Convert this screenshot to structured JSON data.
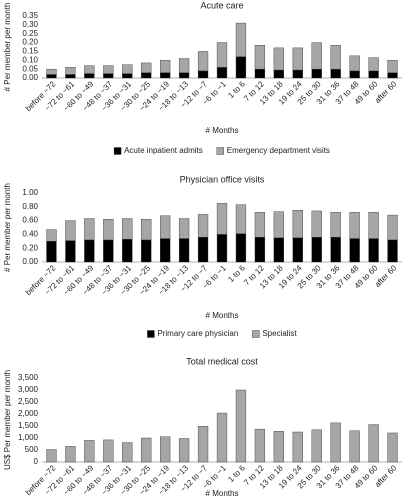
{
  "chart_data": [
    {
      "type": "bar",
      "title": "Acute care",
      "y_label": "# Per member per month",
      "x_label": "# Months",
      "categories": [
        "before −72",
        "−72 to −61",
        "−60 to −49",
        "−48 to −37",
        "−36 to −31",
        "−30 to −25",
        "−24 to −19",
        "−18 to −13",
        "−12 to −7",
        "−6 to −1",
        "1 to 6",
        "7 to 12",
        "13 to 18",
        "19 to 24",
        "25 to 30",
        "31 to 36",
        "37 to 48",
        "49 to 60",
        "after 60"
      ],
      "series": [
        {
          "name": "Acute inpatient admits",
          "color": "#000000",
          "values": [
            0.02,
            0.02,
            0.025,
            0.025,
            0.025,
            0.03,
            0.03,
            0.03,
            0.04,
            0.06,
            0.12,
            0.05,
            0.045,
            0.045,
            0.05,
            0.05,
            0.04,
            0.04,
            0.03
          ]
        },
        {
          "name": "Emergency department visits",
          "color": "#a6a6a6",
          "values": [
            0.03,
            0.04,
            0.045,
            0.045,
            0.05,
            0.055,
            0.07,
            0.08,
            0.11,
            0.14,
            0.19,
            0.135,
            0.125,
            0.125,
            0.15,
            0.135,
            0.085,
            0.075,
            0.07
          ]
        }
      ],
      "ylim": [
        0,
        0.35
      ],
      "yticks": [
        {
          "value": 0,
          "label": "0.00"
        },
        {
          "value": 0.05,
          "label": "0.05"
        },
        {
          "value": 0.1,
          "label": "0.10"
        },
        {
          "value": 0.15,
          "label": "0.15"
        },
        {
          "value": 0.2,
          "label": "0.20"
        },
        {
          "value": 0.25,
          "label": "0.25"
        },
        {
          "value": 0.3,
          "label": "0.30"
        },
        {
          "value": 0.35,
          "label": "0.35"
        }
      ],
      "legend": "bottom"
    },
    {
      "type": "bar",
      "title": "Physician office visits",
      "y_label": "# Per member per month",
      "x_label": "# Months",
      "categories": [
        "before −72",
        "−72 to −61",
        "−60 to −49",
        "−48 to −37",
        "−36 to −31",
        "−30 to −25",
        "−24 to −19",
        "−18 to −13",
        "−12 to −7",
        "−6 to −1",
        "1 to 6",
        "7 to 12",
        "13 to 18",
        "19 to 24",
        "25 to 30",
        "31 to 36",
        "37 to 48",
        "49 to 60",
        "after 60"
      ],
      "series": [
        {
          "name": "Primary care physician",
          "color": "#000000",
          "values": [
            0.3,
            0.31,
            0.32,
            0.32,
            0.33,
            0.32,
            0.34,
            0.34,
            0.36,
            0.4,
            0.41,
            0.36,
            0.35,
            0.35,
            0.36,
            0.36,
            0.34,
            0.34,
            0.32
          ]
        },
        {
          "name": "Specialist",
          "color": "#a6a6a6",
          "values": [
            0.17,
            0.29,
            0.31,
            0.3,
            0.3,
            0.3,
            0.33,
            0.29,
            0.33,
            0.45,
            0.42,
            0.36,
            0.38,
            0.4,
            0.38,
            0.36,
            0.38,
            0.38,
            0.36
          ]
        }
      ],
      "ylim": [
        0,
        1
      ],
      "yticks": [
        {
          "value": 0,
          "label": "0.00"
        },
        {
          "value": 0.2,
          "label": "0.20"
        },
        {
          "value": 0.4,
          "label": "0.40"
        },
        {
          "value": 0.6,
          "label": "0.60"
        },
        {
          "value": 0.8,
          "label": "0.80"
        },
        {
          "value": 1,
          "label": "1.00"
        }
      ],
      "legend": "bottom"
    },
    {
      "type": "bar",
      "title": "Total medical cost",
      "y_label": "US$ Per member per month",
      "x_label": "# Months",
      "categories": [
        "before −72",
        "−72 to −61",
        "−60 to −49",
        "−48 to −37",
        "−36 to −31",
        "−30 to −25",
        "−24 to −19",
        "−18 to −13",
        "−12 to −7",
        "−6 to −1",
        "1 to 6",
        "7 to 12",
        "13 to 18",
        "19 to 24",
        "25 to 30",
        "31 to 36",
        "37 to 48",
        "49 to 60",
        "after 60"
      ],
      "values": [
        520,
        650,
        900,
        920,
        810,
        1000,
        1050,
        980,
        1490,
        2040,
        3000,
        1370,
        1280,
        1250,
        1340,
        1630,
        1300,
        1560,
        1210
      ],
      "color": "#a6a6a6",
      "ylim": [
        0,
        3500
      ],
      "yticks": [
        0,
        500,
        {
          "value": 1000,
          "label": "1,000"
        },
        {
          "value": 1500,
          "label": "1,500"
        },
        {
          "value": 2000,
          "label": "2,000"
        },
        {
          "value": 2500,
          "label": "2,500"
        },
        {
          "value": 3000,
          "label": "3,000"
        },
        {
          "value": 3500,
          "label": "3,500"
        }
      ]
    }
  ]
}
